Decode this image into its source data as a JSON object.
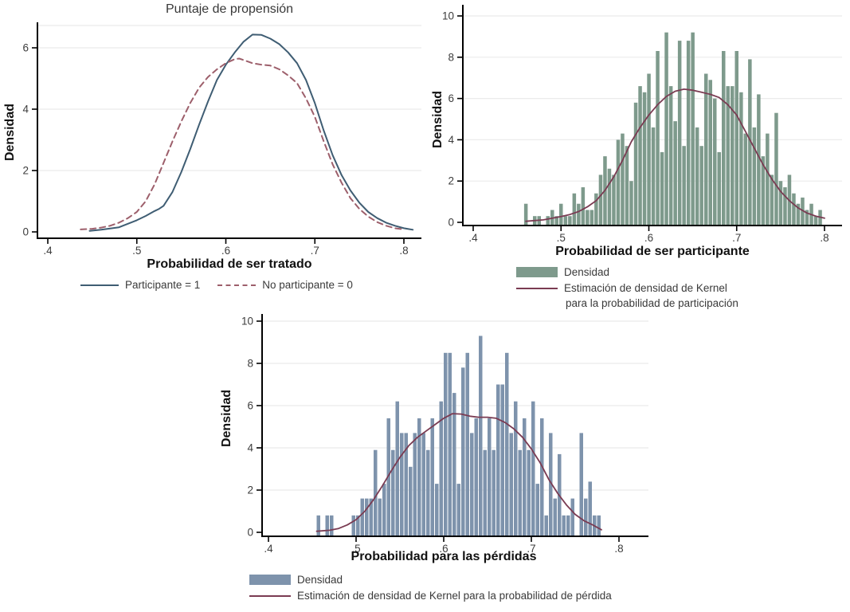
{
  "page": {
    "background": "#ffffff",
    "axis_color": "#000000",
    "grid_color": "#ebebeb",
    "tick_text_color": "#3d3d3d"
  },
  "chart_data": [
    {
      "id": "propensity",
      "type": "line",
      "title": "Puntaje de propensión",
      "xlabel": "Probabilidad de ser tratado",
      "ylabel": "Densidad",
      "xlim": [
        0.4,
        0.81
      ],
      "ylim": [
        0,
        6.7
      ],
      "x_ticks": {
        "values": [
          0.4,
          0.5,
          0.6,
          0.7,
          0.8
        ],
        "labels": [
          ".4",
          ".5",
          ".6",
          ".7",
          ".8"
        ]
      },
      "y_ticks": {
        "values": [
          0,
          2,
          4,
          6
        ],
        "labels": [
          "0",
          "2",
          "4",
          "6"
        ]
      },
      "grid": "horizontal",
      "legend_position": "bottom-center",
      "series": [
        {
          "name": "Participante = 1",
          "style": "solid",
          "color": "#3f5d73",
          "points": [
            [
              0.447,
              0.03
            ],
            [
              0.46,
              0.07
            ],
            [
              0.48,
              0.15
            ],
            [
              0.5,
              0.38
            ],
            [
              0.51,
              0.52
            ],
            [
              0.52,
              0.68
            ],
            [
              0.525,
              0.75
            ],
            [
              0.53,
              0.85
            ],
            [
              0.54,
              1.3
            ],
            [
              0.55,
              1.95
            ],
            [
              0.56,
              2.7
            ],
            [
              0.57,
              3.5
            ],
            [
              0.58,
              4.25
            ],
            [
              0.59,
              4.95
            ],
            [
              0.6,
              5.45
            ],
            [
              0.61,
              5.85
            ],
            [
              0.62,
              6.2
            ],
            [
              0.63,
              6.43
            ],
            [
              0.64,
              6.42
            ],
            [
              0.65,
              6.3
            ],
            [
              0.66,
              6.12
            ],
            [
              0.67,
              5.85
            ],
            [
              0.68,
              5.5
            ],
            [
              0.69,
              4.95
            ],
            [
              0.7,
              4.2
            ],
            [
              0.71,
              3.3
            ],
            [
              0.72,
              2.5
            ],
            [
              0.73,
              1.85
            ],
            [
              0.74,
              1.35
            ],
            [
              0.75,
              0.95
            ],
            [
              0.76,
              0.65
            ],
            [
              0.77,
              0.45
            ],
            [
              0.78,
              0.3
            ],
            [
              0.79,
              0.2
            ],
            [
              0.8,
              0.12
            ],
            [
              0.81,
              0.07
            ]
          ]
        },
        {
          "name": "No participante = 0",
          "style": "dashed",
          "color": "#9d5f6b",
          "points": [
            [
              0.437,
              0.08
            ],
            [
              0.45,
              0.1
            ],
            [
              0.46,
              0.14
            ],
            [
              0.47,
              0.2
            ],
            [
              0.48,
              0.3
            ],
            [
              0.49,
              0.45
            ],
            [
              0.5,
              0.65
            ],
            [
              0.51,
              1.0
            ],
            [
              0.52,
              1.55
            ],
            [
              0.53,
              2.25
            ],
            [
              0.54,
              2.95
            ],
            [
              0.55,
              3.6
            ],
            [
              0.56,
              4.2
            ],
            [
              0.57,
              4.7
            ],
            [
              0.58,
              5.05
            ],
            [
              0.59,
              5.3
            ],
            [
              0.6,
              5.5
            ],
            [
              0.61,
              5.63
            ],
            [
              0.615,
              5.65
            ],
            [
              0.62,
              5.6
            ],
            [
              0.63,
              5.5
            ],
            [
              0.64,
              5.45
            ],
            [
              0.65,
              5.42
            ],
            [
              0.66,
              5.3
            ],
            [
              0.67,
              5.1
            ],
            [
              0.68,
              4.85
            ],
            [
              0.69,
              4.35
            ],
            [
              0.7,
              3.75
            ],
            [
              0.71,
              2.95
            ],
            [
              0.72,
              2.2
            ],
            [
              0.73,
              1.6
            ],
            [
              0.74,
              1.1
            ],
            [
              0.75,
              0.75
            ],
            [
              0.76,
              0.5
            ],
            [
              0.77,
              0.32
            ],
            [
              0.78,
              0.2
            ],
            [
              0.79,
              0.12
            ],
            [
              0.8,
              0.08
            ]
          ]
        }
      ],
      "legend": [
        {
          "label": "Participante = 1"
        },
        {
          "label": "No participante = 0"
        }
      ]
    },
    {
      "id": "participation",
      "type": "histogram+line",
      "title": "",
      "xlabel": "Probabilidad de ser participante",
      "ylabel": "Densidad",
      "xlim": [
        0.4,
        0.8
      ],
      "ylim": [
        0,
        10
      ],
      "x_ticks": {
        "values": [
          0.4,
          0.5,
          0.6,
          0.7,
          0.8
        ],
        "labels": [
          ".4",
          ".5",
          ".6",
          ".7",
          ".8"
        ]
      },
      "y_ticks": {
        "values": [
          0,
          2,
          4,
          6,
          8,
          10
        ],
        "labels": [
          "0",
          "2",
          "4",
          "6",
          "8",
          "10"
        ]
      },
      "grid": "horizontal",
      "histogram": {
        "name": "Densidad",
        "color": "#7e9a8c",
        "bin_start": 0.458,
        "bin_width": 0.005,
        "heights": [
          0.9,
          0,
          0.3,
          0.3,
          0,
          0.3,
          0.6,
          0.3,
          0.9,
          0.3,
          0.3,
          1.4,
          0.9,
          1.7,
          0.6,
          0.6,
          1.4,
          2.3,
          3.2,
          2.6,
          2.3,
          4.0,
          4.3,
          3.7,
          2.0,
          5.8,
          6.6,
          6.3,
          7.2,
          4.6,
          8.3,
          3.4,
          9.2,
          6.6,
          4.9,
          8.8,
          3.7,
          8.8,
          9.2,
          4.6,
          3.7,
          7.2,
          6.9,
          6.0,
          3.4,
          8.3,
          6.6,
          6.6,
          8.3,
          6.3,
          4.3,
          7.9,
          4.6,
          6.2,
          3.2,
          4.3,
          2.3,
          5.3,
          2.0,
          1.7,
          2.3,
          1.4,
          0.9,
          1.2,
          0.6,
          0.9,
          0.3,
          0.6
        ]
      },
      "kernel": {
        "name": "Estimación de densidad de Kernel para la probabilidad de participación",
        "color": "#7a3b52",
        "points": [
          [
            0.46,
            0.05
          ],
          [
            0.48,
            0.12
          ],
          [
            0.5,
            0.28
          ],
          [
            0.51,
            0.38
          ],
          [
            0.52,
            0.52
          ],
          [
            0.53,
            0.75
          ],
          [
            0.54,
            1.05
          ],
          [
            0.55,
            1.55
          ],
          [
            0.56,
            2.2
          ],
          [
            0.57,
            3.0
          ],
          [
            0.58,
            3.9
          ],
          [
            0.59,
            4.6
          ],
          [
            0.6,
            5.2
          ],
          [
            0.61,
            5.7
          ],
          [
            0.62,
            6.1
          ],
          [
            0.63,
            6.35
          ],
          [
            0.64,
            6.45
          ],
          [
            0.65,
            6.4
          ],
          [
            0.66,
            6.3
          ],
          [
            0.67,
            6.2
          ],
          [
            0.68,
            6.05
          ],
          [
            0.69,
            5.7
          ],
          [
            0.7,
            5.2
          ],
          [
            0.71,
            4.4
          ],
          [
            0.72,
            3.6
          ],
          [
            0.73,
            2.8
          ],
          [
            0.74,
            2.1
          ],
          [
            0.75,
            1.5
          ],
          [
            0.76,
            1.05
          ],
          [
            0.77,
            0.7
          ],
          [
            0.78,
            0.45
          ],
          [
            0.79,
            0.3
          ],
          [
            0.8,
            0.2
          ]
        ]
      },
      "legend": [
        {
          "label": "Densidad"
        },
        {
          "label": "Estimación de densidad de Kernel",
          "label2": "para la probabilidad de participación"
        }
      ]
    },
    {
      "id": "losses",
      "type": "histogram+line",
      "title": "",
      "xlabel": "Probabilidad para las pérdidas",
      "ylabel": "Densidad",
      "xlim": [
        0.4,
        0.8
      ],
      "ylim": [
        0,
        10
      ],
      "x_ticks": {
        "values": [
          0.4,
          0.5,
          0.6,
          0.7,
          0.8
        ],
        "labels": [
          ".4",
          ".5",
          ".6",
          ".7",
          ".8"
        ]
      },
      "y_ticks": {
        "values": [
          0,
          2,
          4,
          6,
          8,
          10
        ],
        "labels": [
          "0",
          "2",
          "4",
          "6",
          "8",
          "10"
        ]
      },
      "grid": "horizontal",
      "histogram": {
        "name": "Densidad",
        "color": "#7e93ac",
        "bin_start": 0.455,
        "bin_width": 0.005,
        "heights": [
          0.8,
          0,
          0.8,
          0.8,
          0,
          0,
          0,
          0,
          0.8,
          0.8,
          1.6,
          1.6,
          1.6,
          3.9,
          1.6,
          2.3,
          5.4,
          3.9,
          6.2,
          4.7,
          4.7,
          3.1,
          4.7,
          5.4,
          4.7,
          3.9,
          5.4,
          2.3,
          6.2,
          8.5,
          8.5,
          6.6,
          2.3,
          7.8,
          8.5,
          4.7,
          5.4,
          9.3,
          3.9,
          5.4,
          3.9,
          7.0,
          7.0,
          8.5,
          4.7,
          6.2,
          3.9,
          5.4,
          3.9,
          6.2,
          2.3,
          5.4,
          0.8,
          4.7,
          1.6,
          3.7,
          0.8,
          0.8,
          1.6,
          0,
          4.7,
          1.6,
          2.4,
          0.8,
          0.8
        ]
      },
      "kernel": {
        "name": "Estimación de densidad de Kernel para la probabilidad de pérdida",
        "color": "#7a3b52",
        "points": [
          [
            0.455,
            0.05
          ],
          [
            0.47,
            0.1
          ],
          [
            0.48,
            0.18
          ],
          [
            0.49,
            0.35
          ],
          [
            0.5,
            0.6
          ],
          [
            0.51,
            1.0
          ],
          [
            0.52,
            1.55
          ],
          [
            0.53,
            2.2
          ],
          [
            0.54,
            2.9
          ],
          [
            0.55,
            3.55
          ],
          [
            0.56,
            4.1
          ],
          [
            0.57,
            4.5
          ],
          [
            0.58,
            4.8
          ],
          [
            0.59,
            5.1
          ],
          [
            0.6,
            5.4
          ],
          [
            0.61,
            5.62
          ],
          [
            0.62,
            5.6
          ],
          [
            0.63,
            5.5
          ],
          [
            0.64,
            5.45
          ],
          [
            0.65,
            5.45
          ],
          [
            0.66,
            5.4
          ],
          [
            0.67,
            5.2
          ],
          [
            0.68,
            4.9
          ],
          [
            0.69,
            4.5
          ],
          [
            0.7,
            3.95
          ],
          [
            0.71,
            3.3
          ],
          [
            0.72,
            2.5
          ],
          [
            0.73,
            1.85
          ],
          [
            0.74,
            1.3
          ],
          [
            0.75,
            0.85
          ],
          [
            0.76,
            0.55
          ],
          [
            0.77,
            0.35
          ],
          [
            0.78,
            0.12
          ]
        ]
      },
      "legend": [
        {
          "label": "Densidad"
        },
        {
          "label": "Estimación de densidad de Kernel para la probabilidad de pérdida"
        }
      ]
    }
  ]
}
